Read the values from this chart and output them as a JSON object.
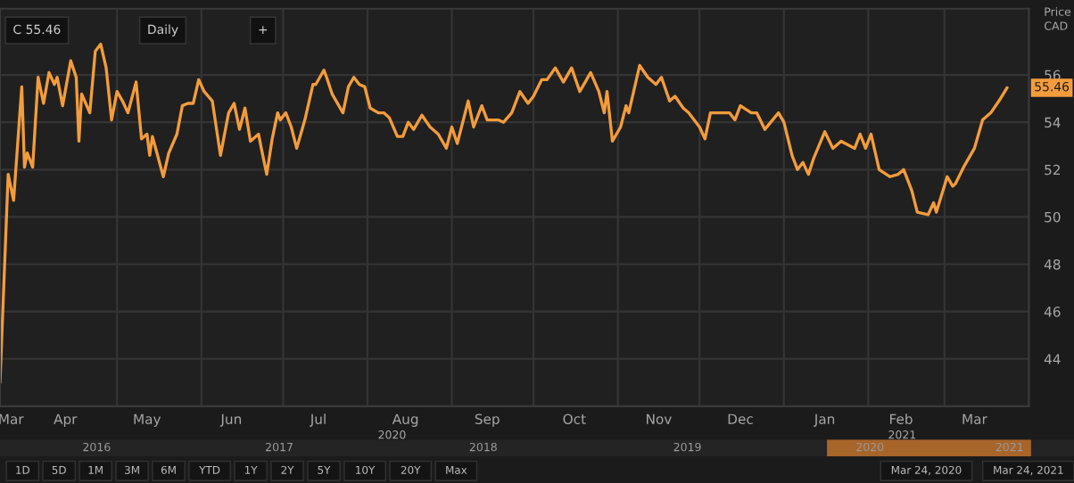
{
  "chart_data": {
    "type": "line",
    "ylabel": "Price\nCAD",
    "x": [
      "2020-03-18",
      "2020-03-21",
      "2020-03-23",
      "2020-03-26",
      "2020-03-27",
      "2020-03-28",
      "2020-03-30",
      "2020-04-01",
      "2020-04-03",
      "2020-04-05",
      "2020-04-07",
      "2020-04-08",
      "2020-04-10",
      "2020-04-13",
      "2020-04-15",
      "2020-04-16",
      "2020-04-17",
      "2020-04-20",
      "2020-04-22",
      "2020-04-24",
      "2020-04-26",
      "2020-04-28",
      "2020-04-30",
      "2020-05-02",
      "2020-05-04",
      "2020-05-07",
      "2020-05-09",
      "2020-05-11",
      "2020-05-12",
      "2020-05-13",
      "2020-05-17",
      "2020-05-19",
      "2020-05-22",
      "2020-05-24",
      "2020-05-26",
      "2020-05-28",
      "2020-05-30",
      "2020-06-01",
      "2020-06-04",
      "2020-06-07",
      "2020-06-10",
      "2020-06-12",
      "2020-06-14",
      "2020-06-16",
      "2020-06-18",
      "2020-06-21",
      "2020-06-22",
      "2020-06-24",
      "2020-06-26",
      "2020-06-28",
      "2020-06-29",
      "2020-07-01",
      "2020-07-03",
      "2020-07-05",
      "2020-07-08",
      "2020-07-11",
      "2020-07-12",
      "2020-07-15",
      "2020-07-16",
      "2020-07-18",
      "2020-07-22",
      "2020-07-24",
      "2020-07-26",
      "2020-07-28",
      "2020-07-30",
      "2020-08-01",
      "2020-08-04",
      "2020-08-06",
      "2020-08-08",
      "2020-08-11",
      "2020-08-13",
      "2020-08-15",
      "2020-08-17",
      "2020-08-20",
      "2020-08-23",
      "2020-08-26",
      "2020-08-29",
      "2020-08-31",
      "2020-09-02",
      "2020-09-06",
      "2020-09-08",
      "2020-09-11",
      "2020-09-13",
      "2020-09-17",
      "2020-09-19",
      "2020-09-22",
      "2020-09-25",
      "2020-09-28",
      "2020-09-30",
      "2020-10-03",
      "2020-10-05",
      "2020-10-08",
      "2020-10-11",
      "2020-10-14",
      "2020-10-17",
      "2020-10-19",
      "2020-10-21",
      "2020-10-24",
      "2020-10-26",
      "2020-10-27",
      "2020-10-29",
      "2020-11-01",
      "2020-11-03",
      "2020-11-04",
      "2020-11-08",
      "2020-11-11",
      "2020-11-14",
      "2020-11-16",
      "2020-11-19",
      "2020-11-21",
      "2020-11-24",
      "2020-11-26",
      "2020-11-30",
      "2020-12-02",
      "2020-12-04",
      "2020-12-08",
      "2020-12-11",
      "2020-12-13",
      "2020-12-15",
      "2020-12-19",
      "2020-12-21",
      "2020-12-24",
      "2020-12-29",
      "2020-12-31",
      "2021-01-03",
      "2021-01-05",
      "2021-01-07",
      "2021-01-09",
      "2021-01-11",
      "2021-01-15",
      "2021-01-18",
      "2021-01-21",
      "2021-01-26",
      "2021-01-28",
      "2021-01-30",
      "2021-02-01",
      "2021-02-04",
      "2021-02-08",
      "2021-02-11",
      "2021-02-13",
      "2021-02-16",
      "2021-02-18",
      "2021-02-22",
      "2021-02-24",
      "2021-02-25",
      "2021-03-01",
      "2021-03-03",
      "2021-03-04",
      "2021-03-07",
      "2021-03-11",
      "2021-03-14",
      "2021-03-17",
      "2021-03-20",
      "2021-03-23"
    ],
    "series": [
      {
        "color": "#f39c3c",
        "values": [
          43.0,
          51.8,
          50.7,
          55.5,
          52.1,
          52.7,
          52.1,
          55.9,
          54.8,
          56.1,
          55.6,
          55.9,
          54.7,
          56.6,
          55.9,
          53.2,
          55.2,
          54.4,
          57.0,
          57.3,
          56.3,
          54.1,
          55.3,
          54.9,
          54.4,
          55.7,
          53.3,
          53.5,
          52.6,
          53.4,
          51.7,
          52.7,
          53.5,
          54.7,
          54.8,
          54.8,
          55.8,
          55.3,
          54.9,
          52.6,
          54.4,
          54.8,
          53.7,
          54.6,
          53.2,
          53.5,
          52.9,
          51.8,
          53.3,
          54.4,
          54.1,
          54.4,
          53.8,
          52.9,
          54.1,
          55.6,
          55.6,
          56.2,
          55.9,
          55.2,
          54.4,
          55.5,
          55.9,
          55.6,
          55.5,
          54.6,
          54.4,
          54.4,
          54.2,
          53.4,
          53.4,
          54.0,
          53.7,
          54.3,
          53.8,
          53.5,
          52.9,
          53.8,
          53.1,
          54.9,
          53.8,
          54.7,
          54.1,
          54.1,
          54.0,
          54.4,
          55.3,
          54.8,
          55.1,
          55.8,
          55.8,
          56.3,
          55.7,
          56.3,
          55.3,
          55.7,
          56.1,
          55.3,
          54.4,
          55.3,
          53.2,
          53.8,
          54.7,
          54.4,
          56.4,
          55.9,
          55.6,
          55.9,
          54.9,
          55.1,
          54.6,
          54.4,
          53.8,
          53.3,
          54.4,
          54.4,
          54.4,
          54.1,
          54.7,
          54.4,
          54.4,
          53.7,
          54.4,
          54.0,
          52.6,
          52.0,
          52.3,
          51.8,
          52.5,
          53.6,
          52.9,
          53.2,
          52.9,
          53.5,
          52.9,
          53.5,
          52.0,
          51.7,
          51.8,
          52.0,
          51.1,
          50.2,
          50.1,
          50.6,
          50.2,
          51.7,
          51.3,
          51.4,
          52.1,
          52.9,
          54.1,
          54.4,
          54.9,
          55.46
        ]
      }
    ],
    "xlim": [
      "2020-03-18",
      "2021-03-31"
    ],
    "xticks": [
      {
        "value": "2020-03-22",
        "label": "Mar"
      },
      {
        "value": "2020-04-11",
        "label": "Apr"
      },
      {
        "value": "2020-05-11",
        "label": "May"
      },
      {
        "value": "2020-06-11",
        "label": "Jun"
      },
      {
        "value": "2020-07-13",
        "label": "Jul"
      },
      {
        "value": "2020-08-14",
        "label": "Aug"
      },
      {
        "value": "2020-09-13",
        "label": "Sep"
      },
      {
        "value": "2020-10-15",
        "label": "Oct"
      },
      {
        "value": "2020-11-15",
        "label": "Nov"
      },
      {
        "value": "2020-12-15",
        "label": "Dec"
      },
      {
        "value": "2021-01-15",
        "label": "Jan"
      },
      {
        "value": "2021-02-12",
        "label": "Feb"
      },
      {
        "value": "2021-03-11",
        "label": "Mar"
      },
      {
        "value": "2020-04-30",
        "label": null
      },
      {
        "value": "2020-05-31",
        "label": null
      },
      {
        "value": "2020-06-30",
        "label": null
      },
      {
        "value": "2020-07-31",
        "label": null
      },
      {
        "value": "2020-08-31",
        "label": null
      },
      {
        "value": "2020-09-30",
        "label": null
      },
      {
        "value": "2020-10-31",
        "label": null
      },
      {
        "value": "2020-11-30",
        "label": null
      },
      {
        "value": "2020-12-31",
        "label": null
      },
      {
        "value": "2021-01-31",
        "label": null
      },
      {
        "value": "2021-02-28",
        "label": null
      }
    ],
    "ylim": [
      42,
      58.8
    ],
    "yticks": [
      44,
      46,
      48,
      50,
      52,
      54,
      56
    ],
    "grid": true,
    "legend": false,
    "marker": "none",
    "line_style": "solid",
    "annotations": [
      "C 55.46",
      "Daily",
      "+",
      "2020",
      "2021",
      "2016",
      "2017",
      "2018",
      "2019",
      "2020",
      "2021",
      "1D",
      "5D",
      "1M",
      "3M",
      "6M",
      "YTD",
      "1Y",
      "2Y",
      "5Y",
      "10Y",
      "20Y",
      "Max",
      "Mar 24, 2020",
      "Mar 24, 2021",
      {
        "text": "55.46",
        "x": "2021-03-23",
        "y": 55.46
      }
    ]
  }
}
